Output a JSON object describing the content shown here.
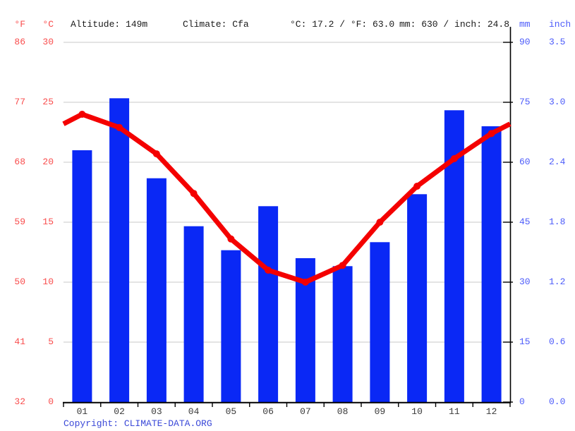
{
  "header": {
    "f_unit": "°F",
    "c_unit": "°C",
    "altitude": "Altitude: 149m",
    "climate": "Climate: Cfa",
    "temp_summary": "°C: 17.2 / °F: 63.0",
    "precip_summary": "mm: 630 / inch: 24.8",
    "mm_unit": "mm",
    "inch_unit": "inch"
  },
  "left_axis": {
    "f_ticks": [
      "86",
      "77",
      "68",
      "59",
      "50",
      "41",
      "32"
    ],
    "c_ticks": [
      "30",
      "25",
      "20",
      "15",
      "10",
      "5",
      "0"
    ]
  },
  "right_axis": {
    "mm_ticks": [
      "90",
      "75",
      "60",
      "45",
      "30",
      "15",
      "0"
    ],
    "inch_ticks": [
      "3.5",
      "3.0",
      "2.4",
      "1.8",
      "1.2",
      "0.6",
      "0.0"
    ]
  },
  "copyright": {
    "prefix": "Copyright: ",
    "link": "CLIMATE-DATA.ORG"
  },
  "colors": {
    "bar_blue": "#0a28f5",
    "line_red": "#f40000",
    "label_red": "#f94d4d",
    "label_blue": "#4d5cfa",
    "grid_gray": "#c9c9c9",
    "axis_black": "#000000",
    "copyright_blue": "#3b49d8",
    "month_gray": "#3a3a3a"
  },
  "chart_data": {
    "type": "bar",
    "subtype": "climate bar+line combo",
    "categories": [
      "01",
      "02",
      "03",
      "04",
      "05",
      "06",
      "07",
      "08",
      "09",
      "10",
      "11",
      "12"
    ],
    "series": [
      {
        "name": "precipitation",
        "type": "bar",
        "unit": "mm",
        "values": [
          63,
          76,
          56,
          44,
          38,
          49,
          36,
          34,
          40,
          52,
          73,
          69
        ]
      },
      {
        "name": "temperature",
        "type": "line",
        "unit": "°C",
        "values": [
          24.0,
          22.9,
          20.7,
          17.4,
          13.6,
          11.0,
          10.0,
          11.4,
          15.0,
          18.0,
          20.3,
          22.4
        ]
      }
    ],
    "title": "",
    "xlabel": "",
    "ylabel_left": "°C / °F (temperature)",
    "ylabel_right": "mm / inch (precipitation)",
    "temp_axis_c": [
      30,
      25,
      20,
      15,
      10,
      5,
      0
    ],
    "temp_axis_f": [
      86,
      77,
      68,
      59,
      50,
      41,
      32
    ],
    "precip_axis_mm": [
      90,
      75,
      60,
      45,
      30,
      15,
      0
    ],
    "precip_axis_inch": [
      3.5,
      3.0,
      2.4,
      1.8,
      1.2,
      0.6,
      0.0
    ],
    "ylim_temp_c": [
      0,
      30
    ],
    "ylim_precip_mm": [
      0,
      90
    ],
    "annual_mean_temp_c": 17.2,
    "annual_mean_temp_f": 63.0,
    "annual_precip_mm": 630,
    "annual_precip_inch": 24.8,
    "grid": "horizontal",
    "legend_position": "none"
  }
}
